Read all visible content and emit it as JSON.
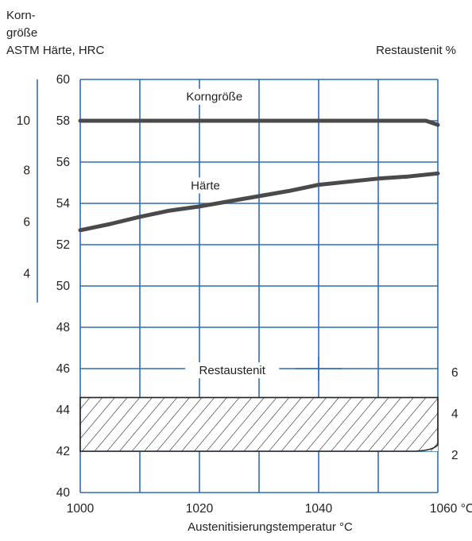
{
  "chart_data": {
    "type": "line",
    "title": "",
    "xlabel": "Austenitisierungstemperatur °C",
    "header_left_lines": [
      "Korn-",
      "größe",
      "ASTM Härte, HRC"
    ],
    "header_right": "Restaustenit %",
    "x_unit_suffix": "°C",
    "xlim": [
      1000,
      1060
    ],
    "x_ticks": [
      1000,
      1020,
      1040,
      1060
    ],
    "x_grid": [
      1000,
      1010,
      1020,
      1030,
      1040,
      1050,
      1060
    ],
    "ylim": [
      40,
      60
    ],
    "y_ticks": [
      40,
      42,
      44,
      46,
      48,
      50,
      52,
      54,
      56,
      58,
      60
    ],
    "grain_axis": {
      "ticks": [
        {
          "label": "10",
          "at_hrc": 58
        },
        {
          "label": "8",
          "at_hrc": 55.6
        },
        {
          "label": "6",
          "at_hrc": 53.1
        },
        {
          "label": "4",
          "at_hrc": 50.6
        }
      ]
    },
    "restaustenit_axis": {
      "ticks": [
        {
          "label": "6",
          "at_hrc": 45.8
        },
        {
          "label": "4",
          "at_hrc": 43.8
        },
        {
          "label": "2",
          "at_hrc": 41.8
        }
      ]
    },
    "series": [
      {
        "name": "Korngröße",
        "color": "#4a4a4a",
        "x": [
          1000,
          1010,
          1020,
          1030,
          1040,
          1050,
          1058,
          1060
        ],
        "y": [
          58.0,
          58.0,
          58.0,
          58.0,
          58.0,
          58.0,
          58.0,
          57.8
        ]
      },
      {
        "name": "Härte",
        "color": "#4a4a4a",
        "x": [
          1000,
          1005,
          1010,
          1015,
          1020,
          1025,
          1030,
          1035,
          1040,
          1045,
          1050,
          1055,
          1060
        ],
        "y": [
          52.7,
          53.0,
          53.35,
          53.65,
          53.85,
          54.1,
          54.35,
          54.6,
          54.9,
          55.05,
          55.2,
          55.3,
          55.45
        ]
      }
    ],
    "band": {
      "name": "Restaustenit",
      "x_range": [
        1000,
        1060
      ],
      "hrc_range": [
        42,
        44.6
      ],
      "pattern": "diagonal-hatch"
    },
    "colors": {
      "grid": "#2f6db5",
      "line": "#4a4a4a",
      "band": "#222222"
    },
    "grid": true
  }
}
